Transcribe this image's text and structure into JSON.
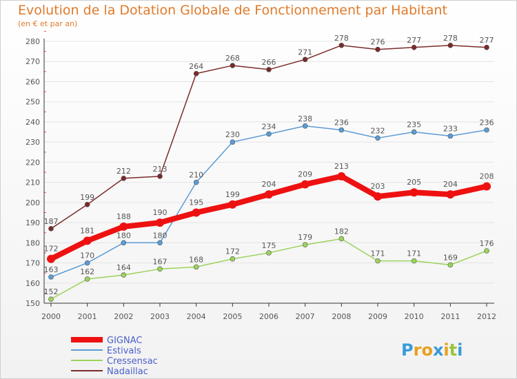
{
  "chart_data": {
    "type": "line",
    "title": "Evolution de la Dotation Globale de Fonctionnement par Habitant",
    "subtitle": "(en € et par an)",
    "xlabel": "",
    "ylabel": "",
    "x": [
      "2000",
      "2001",
      "2002",
      "2003",
      "2004",
      "2005",
      "2006",
      "2007",
      "2008",
      "2009",
      "2010",
      "2011",
      "2012"
    ],
    "ylim": [
      150,
      280
    ],
    "yticks": [
      150,
      160,
      170,
      180,
      190,
      200,
      210,
      220,
      230,
      240,
      250,
      260,
      270,
      280
    ],
    "grid": "horizontal",
    "legend_position": "bottom-left",
    "series": [
      {
        "name": "Nadaillac",
        "color": "#7a2a2a",
        "values": [
          187,
          199,
          212,
          213,
          264,
          268,
          266,
          271,
          278,
          276,
          277,
          278,
          277
        ]
      },
      {
        "name": "Estivals",
        "color": "#5b9bd5",
        "values": [
          163,
          170,
          180,
          180,
          210,
          230,
          234,
          238,
          236,
          232,
          235,
          233,
          236
        ]
      },
      {
        "name": "Cressensac",
        "color": "#9ad35a",
        "values": [
          152,
          162,
          164,
          167,
          168,
          172,
          175,
          179,
          182,
          171,
          171,
          169,
          176
        ]
      },
      {
        "name": "GIGNAC",
        "color": "#ee1111",
        "values": [
          172,
          181,
          188,
          190,
          195,
          199,
          204,
          209,
          213,
          203,
          205,
          204,
          208
        ]
      }
    ],
    "legend_order": [
      "GIGNAC",
      "Estivals",
      "Cressensac",
      "Nadaillac"
    ]
  },
  "brand": {
    "letters": [
      "P",
      "r",
      "o",
      "x",
      "i",
      "t",
      "i"
    ],
    "colors": [
      "#3a9ad9",
      "#e8a020",
      "#e8a020",
      "#3a9ad9",
      "#e8a020",
      "#9ac43a",
      "#3a9ad9"
    ]
  }
}
